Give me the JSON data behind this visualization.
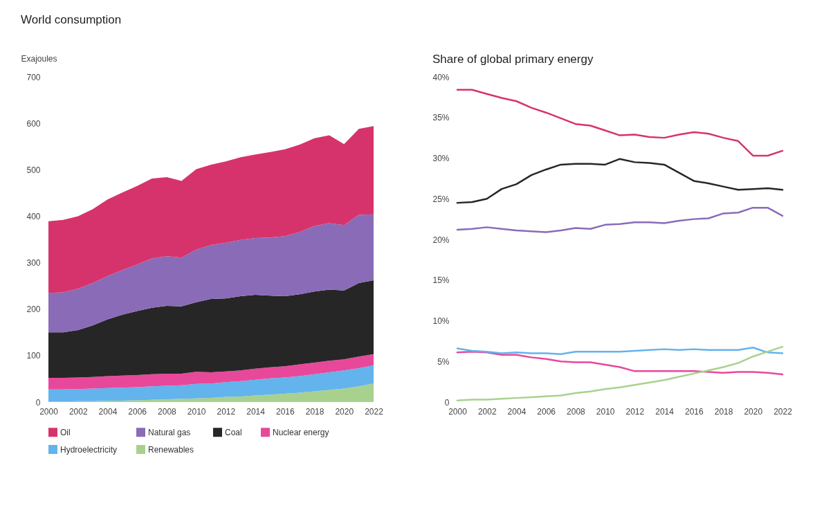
{
  "chart_data": [
    {
      "type": "area",
      "title": "World consumption",
      "ylabel": "Exajoules",
      "stacked": true,
      "grid": false,
      "legend": "bottom",
      "x": [
        2000,
        2001,
        2002,
        2003,
        2004,
        2005,
        2006,
        2007,
        2008,
        2009,
        2010,
        2011,
        2012,
        2013,
        2014,
        2015,
        2016,
        2017,
        2018,
        2019,
        2020,
        2021,
        2022
      ],
      "xlim": [
        2000,
        2022
      ],
      "xticks": [
        2000,
        2002,
        2004,
        2006,
        2008,
        2010,
        2012,
        2014,
        2016,
        2018,
        2020,
        2022
      ],
      "ylim": [
        0,
        700
      ],
      "yticks": [
        0,
        100,
        200,
        300,
        400,
        500,
        600,
        700
      ],
      "series": [
        {
          "name": "Renewables",
          "color": "#a9d18e",
          "values": [
            1,
            1,
            2,
            2,
            3,
            3,
            4,
            5,
            6,
            7,
            8,
            9,
            11,
            12,
            14,
            16,
            18,
            20,
            23,
            26,
            29,
            34,
            40
          ]
        },
        {
          "name": "Hydroelectricity",
          "color": "#63b3ec",
          "values": [
            26,
            26,
            26,
            27,
            27,
            28,
            28,
            29,
            29,
            29,
            31,
            31,
            32,
            33,
            34,
            35,
            35,
            36,
            37,
            38,
            39,
            39,
            39
          ]
        },
        {
          "name": "Nuclear energy",
          "color": "#e8489a",
          "values": [
            25,
            25,
            25,
            25,
            26,
            26,
            26,
            26,
            26,
            25,
            26,
            24,
            23,
            23,
            24,
            24,
            24,
            25,
            25,
            25,
            24,
            25,
            24
          ]
        },
        {
          "name": "Coal",
          "color": "#262626",
          "values": [
            98,
            98,
            102,
            111,
            122,
            131,
            138,
            143,
            146,
            145,
            150,
            158,
            157,
            160,
            159,
            154,
            151,
            151,
            153,
            153,
            148,
            158,
            159
          ]
        },
        {
          "name": "Natural gas",
          "color": "#8a6bb8",
          "values": [
            85,
            86,
            89,
            91,
            93,
            96,
            100,
            106,
            107,
            105,
            113,
            116,
            120,
            121,
            122,
            125,
            129,
            134,
            141,
            143,
            141,
            147,
            142
          ]
        },
        {
          "name": "Oil",
          "color": "#d6336c",
          "values": [
            154,
            156,
            156,
            159,
            165,
            167,
            169,
            172,
            170,
            165,
            173,
            173,
            175,
            178,
            180,
            184,
            187,
            188,
            189,
            189,
            174,
            185,
            190
          ]
        }
      ]
    },
    {
      "type": "line",
      "title": "Share of global primary energy",
      "grid": false,
      "legend": "bottom",
      "x": [
        2000,
        2001,
        2002,
        2003,
        2004,
        2005,
        2006,
        2007,
        2008,
        2009,
        2010,
        2011,
        2012,
        2013,
        2014,
        2015,
        2016,
        2017,
        2018,
        2019,
        2020,
        2021,
        2022
      ],
      "xlim": [
        2000,
        2022
      ],
      "xticks": [
        2000,
        2002,
        2004,
        2006,
        2008,
        2010,
        2012,
        2014,
        2016,
        2018,
        2020,
        2022
      ],
      "ylim": [
        0,
        40
      ],
      "yticks": [
        0,
        {
          "value": 5,
          "label": "5%"
        },
        {
          "value": 10,
          "label": "10%"
        },
        {
          "value": 15,
          "label": "15%"
        },
        {
          "value": 20,
          "label": "20%"
        },
        {
          "value": 25,
          "label": "25%"
        },
        {
          "value": 30,
          "label": "30%"
        },
        {
          "value": 35,
          "label": "35%"
        },
        {
          "value": 40,
          "label": "40%"
        }
      ],
      "series": [
        {
          "name": "Oil",
          "color": "#d6336c",
          "values": [
            38.4,
            38.4,
            37.9,
            37.4,
            37.0,
            36.2,
            35.6,
            34.9,
            34.2,
            34.0,
            33.4,
            32.8,
            32.9,
            32.6,
            32.5,
            32.9,
            33.2,
            33.0,
            32.5,
            32.1,
            30.3,
            30.3,
            30.9
          ]
        },
        {
          "name": "Coal",
          "color": "#262626",
          "values": [
            24.5,
            24.6,
            25.0,
            26.2,
            26.8,
            27.9,
            28.6,
            29.2,
            29.3,
            29.3,
            29.2,
            29.9,
            29.5,
            29.4,
            29.2,
            28.2,
            27.2,
            26.9,
            26.5,
            26.1,
            26.2,
            26.3,
            26.1
          ]
        },
        {
          "name": "Natural gas",
          "color": "#8a6bb8",
          "values": [
            21.2,
            21.3,
            21.5,
            21.3,
            21.1,
            21.0,
            20.9,
            21.1,
            21.4,
            21.3,
            21.8,
            21.9,
            22.1,
            22.1,
            22.0,
            22.3,
            22.5,
            22.6,
            23.2,
            23.3,
            23.9,
            23.9,
            22.9
          ]
        },
        {
          "name": "Nuclear energy",
          "color": "#e8489a",
          "values": [
            6.1,
            6.2,
            6.1,
            5.8,
            5.8,
            5.5,
            5.3,
            5.0,
            4.9,
            4.9,
            4.6,
            4.3,
            3.8,
            3.8,
            3.8,
            3.8,
            3.8,
            3.7,
            3.6,
            3.7,
            3.7,
            3.6,
            3.4
          ]
        },
        {
          "name": "Hydroelectricity",
          "color": "#63b3ec",
          "values": [
            6.6,
            6.3,
            6.2,
            6.0,
            6.1,
            6.0,
            6.0,
            5.9,
            6.2,
            6.2,
            6.2,
            6.2,
            6.3,
            6.4,
            6.5,
            6.4,
            6.5,
            6.4,
            6.4,
            6.4,
            6.7,
            6.1,
            6.0
          ]
        },
        {
          "name": "Renewables",
          "color": "#a9d18e",
          "values": [
            0.2,
            0.3,
            0.3,
            0.4,
            0.5,
            0.6,
            0.7,
            0.8,
            1.1,
            1.3,
            1.6,
            1.8,
            2.1,
            2.4,
            2.7,
            3.1,
            3.5,
            3.9,
            4.3,
            4.8,
            5.6,
            6.2,
            6.8
          ]
        }
      ]
    }
  ]
}
